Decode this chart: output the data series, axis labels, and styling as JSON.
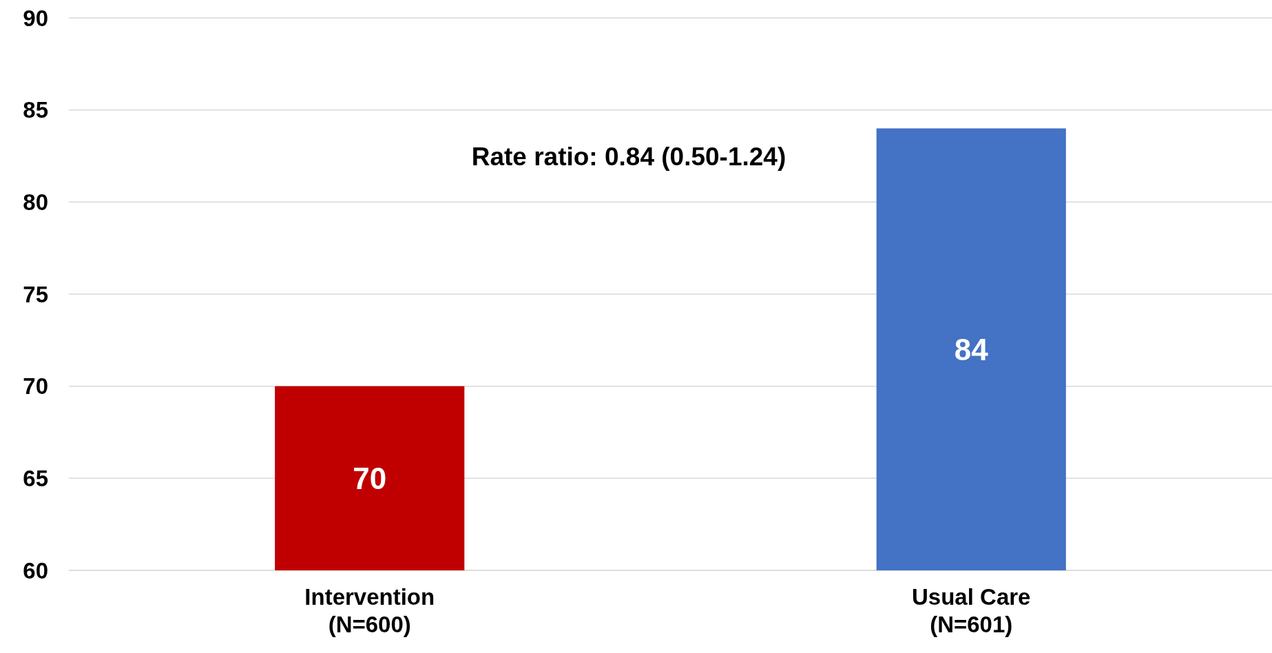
{
  "chart_data": {
    "type": "bar",
    "categories": [
      "Intervention\n(N=600)",
      "Usual Care\n(N=601)"
    ],
    "values": [
      70,
      84
    ],
    "colors": [
      "#c00000",
      "#4472c4"
    ],
    "ylim": [
      60,
      90
    ],
    "yticks": [
      60,
      65,
      70,
      75,
      80,
      85,
      90
    ],
    "grid": "y",
    "data_labels": true,
    "annotations": [
      "Rate ratio: 0.84 (0.50-1.24)"
    ]
  }
}
